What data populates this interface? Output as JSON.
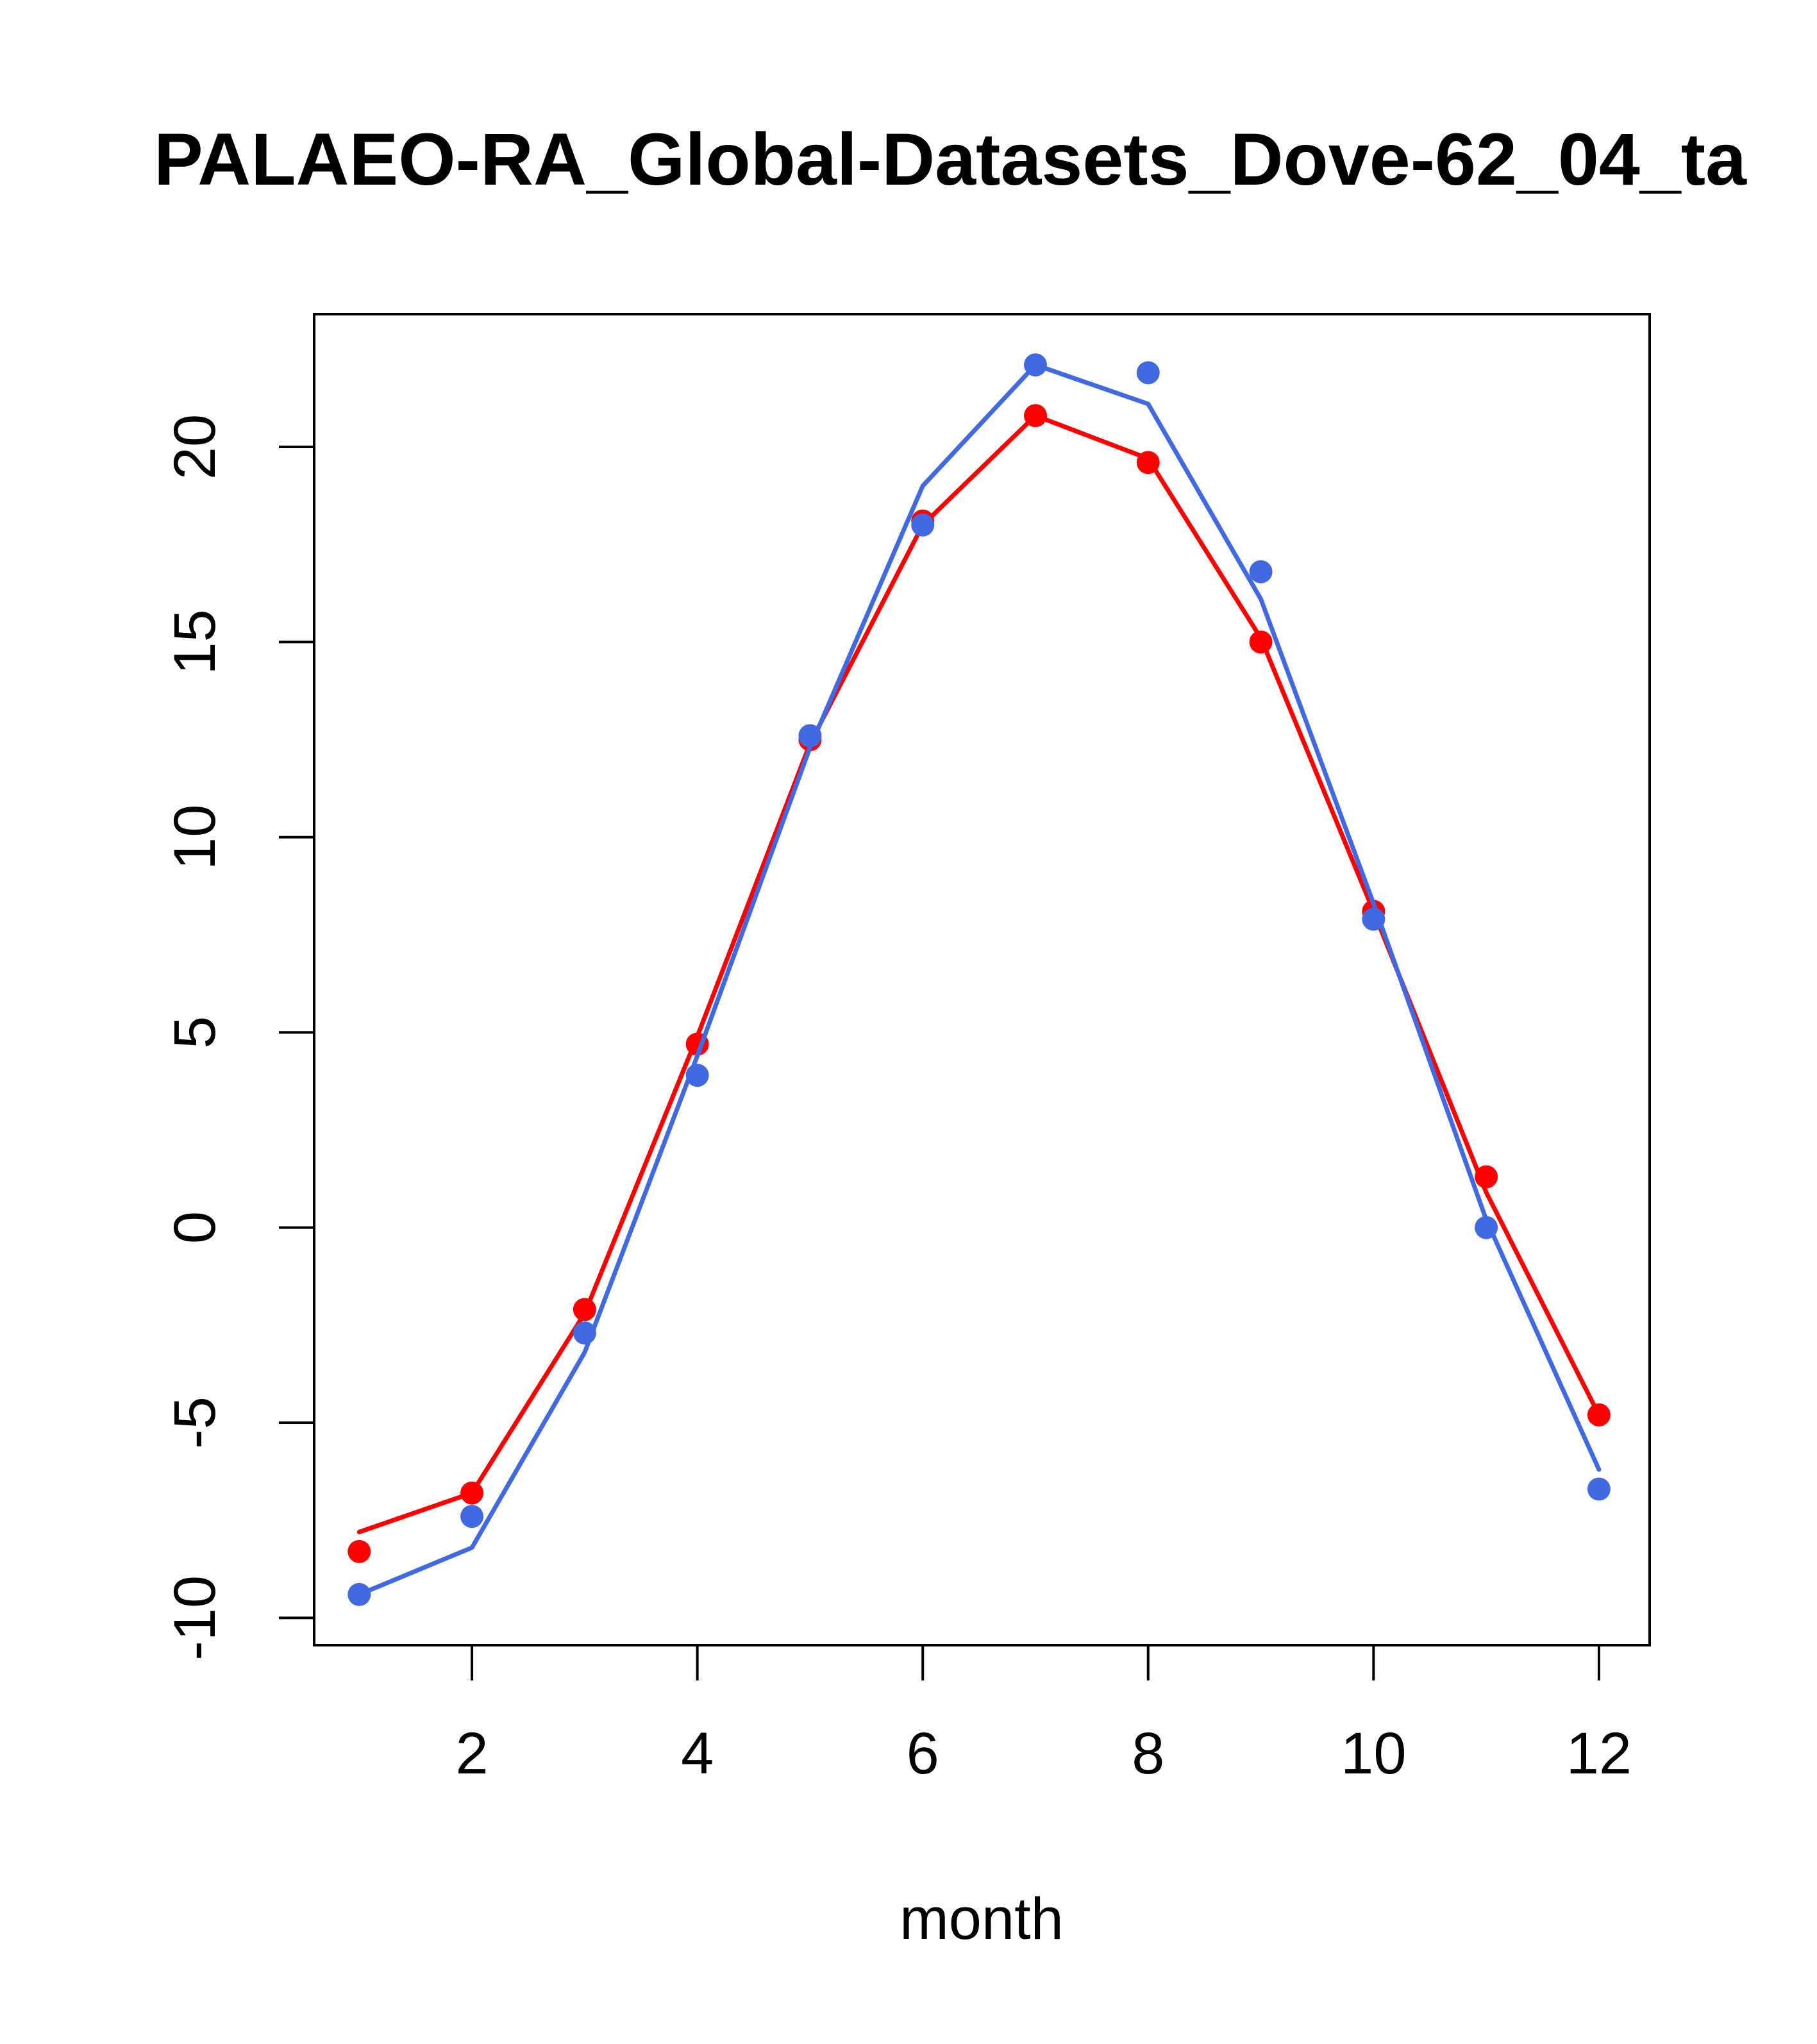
{
  "chart_data": {
    "type": "line",
    "title": "PALAEO-RA_Global-Datasets_Dove-62_04_ta",
    "xlabel": "month",
    "ylabel": "",
    "xlim": [
      0.6,
      12.45
    ],
    "ylim": [
      -10.7,
      23.4
    ],
    "x_ticks": [
      2,
      4,
      6,
      8,
      10,
      12
    ],
    "y_ticks": [
      -10,
      -5,
      0,
      5,
      10,
      15,
      20
    ],
    "grid": false,
    "x": [
      1,
      2,
      3,
      4,
      5,
      6,
      7,
      8,
      9,
      10,
      11,
      12
    ],
    "series": [
      {
        "color": "#ff0000",
        "points": [
          -8.3,
          -6.8,
          -2.1,
          4.7,
          12.5,
          18.1,
          20.8,
          19.6,
          15.0,
          8.1,
          1.3,
          -4.8
        ],
        "line": [
          -7.8,
          -6.8,
          -2.2,
          4.9,
          12.4,
          18.0,
          20.8,
          19.7,
          15.1,
          8.1,
          0.9,
          -4.8
        ]
      },
      {
        "color": "#4169e1",
        "points": [
          -9.4,
          -7.4,
          -2.7,
          3.9,
          12.6,
          18.0,
          22.1,
          21.9,
          16.8,
          7.9,
          0.0,
          -6.7
        ],
        "line": [
          -9.4,
          -8.2,
          -3.2,
          4.4,
          12.3,
          19.0,
          22.1,
          21.1,
          16.1,
          8.3,
          0.2,
          -6.2
        ]
      }
    ]
  }
}
